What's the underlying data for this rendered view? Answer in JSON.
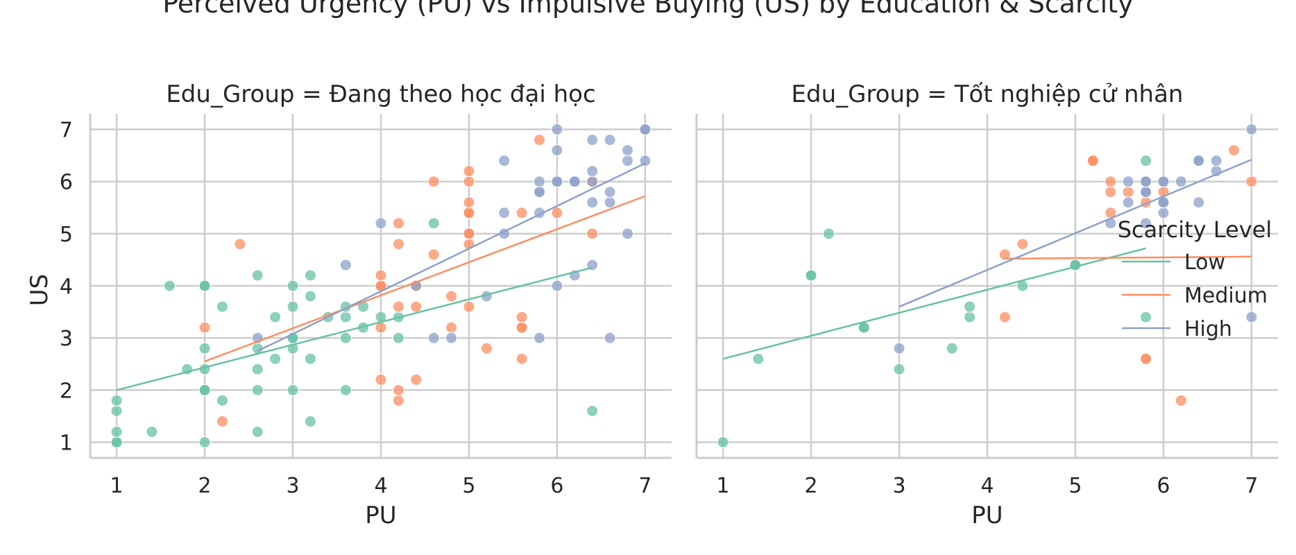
{
  "suptitle": "Perceived Urgency (PU) vs Impulsive Buying (US) by Education & Scarcity",
  "colors": {
    "Low": "#66c2a5",
    "Medium": "#fc8d62",
    "High": "#8da0cb"
  },
  "chart_data": [
    {
      "type": "scatter",
      "title": "Edu_Group = Đang theo học đại học",
      "xlabel": "PU",
      "ylabel": "US",
      "xlim": [
        0.7,
        7.3
      ],
      "ylim": [
        0.7,
        7.3
      ],
      "xticks": [
        "1",
        "2",
        "3",
        "4",
        "5",
        "6",
        "7"
      ],
      "yticks": [
        "1",
        "2",
        "3",
        "4",
        "5",
        "6",
        "7"
      ],
      "grid": true,
      "series": [
        {
          "name": "Low",
          "points": [
            [
              1,
              1
            ],
            [
              1,
              1
            ],
            [
              1,
              1.2
            ],
            [
              1,
              1.6
            ],
            [
              1,
              1.8
            ],
            [
              1.4,
              1.2
            ],
            [
              1.6,
              4
            ],
            [
              1.8,
              2.4
            ],
            [
              2,
              1
            ],
            [
              2,
              2
            ],
            [
              2,
              2
            ],
            [
              2,
              2.4
            ],
            [
              2,
              2.8
            ],
            [
              2,
              4
            ],
            [
              2,
              4
            ],
            [
              2.2,
              1.8
            ],
            [
              2.2,
              3.6
            ],
            [
              2.6,
              1.2
            ],
            [
              2.6,
              2
            ],
            [
              2.6,
              2.4
            ],
            [
              2.6,
              2.8
            ],
            [
              2.6,
              4.2
            ],
            [
              2.8,
              2.6
            ],
            [
              2.8,
              3.4
            ],
            [
              3,
              2
            ],
            [
              3,
              2.8
            ],
            [
              3,
              3
            ],
            [
              3,
              3
            ],
            [
              3,
              3.6
            ],
            [
              3,
              4
            ],
            [
              3.2,
              1.4
            ],
            [
              3.2,
              2.6
            ],
            [
              3.2,
              3.8
            ],
            [
              3.2,
              4.2
            ],
            [
              3.4,
              3.4
            ],
            [
              3.6,
              2
            ],
            [
              3.6,
              3
            ],
            [
              3.6,
              3.4
            ],
            [
              3.6,
              3.6
            ],
            [
              3.8,
              3.2
            ],
            [
              3.8,
              3.6
            ],
            [
              4,
              3.4
            ],
            [
              4.2,
              3
            ],
            [
              4.2,
              3.4
            ],
            [
              4.6,
              5.2
            ],
            [
              6.4,
              1.6
            ]
          ],
          "fit": [
            [
              1,
              2.0
            ],
            [
              6.4,
              4.35
            ]
          ]
        },
        {
          "name": "Medium",
          "points": [
            [
              2,
              3.2
            ],
            [
              2.2,
              1.4
            ],
            [
              2.4,
              4.8
            ],
            [
              4,
              2.2
            ],
            [
              4,
              3.2
            ],
            [
              4,
              4
            ],
            [
              4,
              4
            ],
            [
              4,
              4.2
            ],
            [
              4.2,
              1.8
            ],
            [
              4.2,
              2
            ],
            [
              4.2,
              3.6
            ],
            [
              4.2,
              4.8
            ],
            [
              4.2,
              5.2
            ],
            [
              4.4,
              2.2
            ],
            [
              4.4,
              3.6
            ],
            [
              4.4,
              4
            ],
            [
              4.6,
              4.6
            ],
            [
              4.6,
              6
            ],
            [
              4.8,
              3.2
            ],
            [
              4.8,
              3.8
            ],
            [
              5,
              3.6
            ],
            [
              5,
              4.8
            ],
            [
              5,
              5
            ],
            [
              5,
              5
            ],
            [
              5,
              5.4
            ],
            [
              5,
              5.4
            ],
            [
              5,
              5.6
            ],
            [
              5,
              6
            ],
            [
              5,
              6.2
            ],
            [
              5.2,
              2.8
            ],
            [
              5.6,
              2.6
            ],
            [
              5.6,
              3.2
            ],
            [
              5.6,
              3.2
            ],
            [
              5.6,
              3.4
            ],
            [
              5.6,
              5.4
            ],
            [
              5.8,
              6.8
            ],
            [
              6,
              5.4
            ],
            [
              6.4,
              5
            ],
            [
              6.4,
              6
            ]
          ],
          "fit": [
            [
              2,
              2.55
            ],
            [
              7,
              5.72
            ]
          ]
        },
        {
          "name": "High",
          "points": [
            [
              2.6,
              3
            ],
            [
              3.6,
              4.4
            ],
            [
              4,
              5.2
            ],
            [
              4.4,
              4
            ],
            [
              4.6,
              3
            ],
            [
              4.8,
              3
            ],
            [
              5.2,
              3.8
            ],
            [
              5.4,
              5
            ],
            [
              5.4,
              5.4
            ],
            [
              5.4,
              6.4
            ],
            [
              5.8,
              3
            ],
            [
              5.8,
              5.4
            ],
            [
              5.8,
              5.8
            ],
            [
              5.8,
              5.8
            ],
            [
              5.8,
              6
            ],
            [
              6,
              4
            ],
            [
              6,
              6
            ],
            [
              6,
              6
            ],
            [
              6,
              6.6
            ],
            [
              6,
              7
            ],
            [
              6.2,
              4.2
            ],
            [
              6.2,
              6
            ],
            [
              6.2,
              6
            ],
            [
              6.4,
              4.4
            ],
            [
              6.4,
              5.6
            ],
            [
              6.4,
              6
            ],
            [
              6.4,
              6.2
            ],
            [
              6.4,
              6.8
            ],
            [
              6.6,
              3
            ],
            [
              6.6,
              5.6
            ],
            [
              6.6,
              5.8
            ],
            [
              6.6,
              6.8
            ],
            [
              6.8,
              5
            ],
            [
              6.8,
              6.4
            ],
            [
              6.8,
              6.6
            ],
            [
              7,
              6.4
            ],
            [
              7,
              7
            ],
            [
              7,
              7
            ]
          ],
          "fit": [
            [
              2.6,
              2.75
            ],
            [
              7,
              6.35
            ]
          ]
        }
      ]
    },
    {
      "type": "scatter",
      "title": "Edu_Group = Tốt nghiệp cử nhân",
      "xlabel": "PU",
      "ylabel": "",
      "xlim": [
        0.7,
        7.3
      ],
      "ylim": [
        0.7,
        7.3
      ],
      "xticks": [
        "1",
        "2",
        "3",
        "4",
        "5",
        "6",
        "7"
      ],
      "yticks": [],
      "grid": true,
      "series": [
        {
          "name": "Low",
          "points": [
            [
              1,
              1
            ],
            [
              1.4,
              2.6
            ],
            [
              2,
              4.2
            ],
            [
              2,
              4.2
            ],
            [
              2.2,
              5
            ],
            [
              2.6,
              3.2
            ],
            [
              2.6,
              3.2
            ],
            [
              3,
              2.4
            ],
            [
              3.6,
              2.8
            ],
            [
              3.8,
              3.4
            ],
            [
              3.8,
              3.6
            ],
            [
              4.4,
              4
            ],
            [
              5,
              4.4
            ],
            [
              5,
              4.4
            ],
            [
              5.8,
              3.4
            ],
            [
              5.8,
              6.4
            ]
          ],
          "fit": [
            [
              1,
              2.6
            ],
            [
              5.8,
              4.72
            ]
          ]
        },
        {
          "name": "Medium",
          "points": [
            [
              4.2,
              3.4
            ],
            [
              4.2,
              4.6
            ],
            [
              4.4,
              4.8
            ],
            [
              5.2,
              6.4
            ],
            [
              5.2,
              6.4
            ],
            [
              5.4,
              5.4
            ],
            [
              5.4,
              5.8
            ],
            [
              5.4,
              6
            ],
            [
              5.6,
              5.8
            ],
            [
              5.8,
              2.6
            ],
            [
              5.8,
              2.6
            ],
            [
              5.8,
              5.6
            ],
            [
              6,
              5.8
            ],
            [
              6.2,
              1.8
            ],
            [
              6.8,
              6.6
            ],
            [
              7,
              6
            ]
          ],
          "fit": [
            [
              4.2,
              4.52
            ],
            [
              7,
              4.56
            ]
          ]
        },
        {
          "name": "High",
          "points": [
            [
              3,
              2.8
            ],
            [
              5.4,
              5.2
            ],
            [
              5.6,
              5.6
            ],
            [
              5.6,
              6
            ],
            [
              5.8,
              5.2
            ],
            [
              5.8,
              5.8
            ],
            [
              5.8,
              5.8
            ],
            [
              5.8,
              6
            ],
            [
              5.8,
              6
            ],
            [
              6,
              5.4
            ],
            [
              6,
              5.6
            ],
            [
              6,
              5.6
            ],
            [
              6,
              6
            ],
            [
              6,
              6
            ],
            [
              6.2,
              6
            ],
            [
              6.4,
              5.6
            ],
            [
              6.4,
              6.4
            ],
            [
              6.4,
              6.4
            ],
            [
              6.6,
              6.2
            ],
            [
              6.6,
              6.4
            ],
            [
              7,
              3.4
            ],
            [
              7,
              7
            ]
          ],
          "fit": [
            [
              3,
              3.6
            ],
            [
              7,
              6.42
            ]
          ]
        }
      ]
    }
  ],
  "legend": {
    "title": "Scarcity Level",
    "placement": "right",
    "items": [
      "Low",
      "Medium",
      "High"
    ]
  }
}
